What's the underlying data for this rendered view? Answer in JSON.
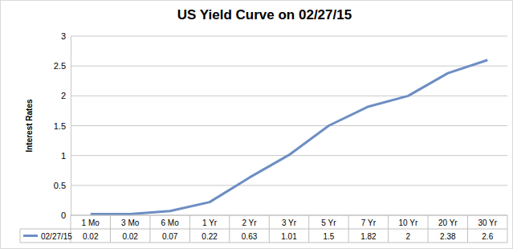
{
  "chart_data": {
    "type": "line",
    "title": "US Yield Curve on 02/27/15",
    "y_label": "Interest Rates",
    "categories": [
      "1 Mo",
      "3 Mo",
      "6 Mo",
      "1 Yr",
      "2 Yr",
      "3 Yr",
      "5 Yr",
      "7 Yr",
      "10 Yr",
      "20 Yr",
      "30 Yr"
    ],
    "series": [
      {
        "name": "02/27/15",
        "color": "#6d8ec4",
        "values": [
          0.02,
          0.02,
          0.07,
          0.22,
          0.63,
          1.01,
          1.5,
          1.82,
          2,
          2.38,
          2.6
        ]
      }
    ],
    "ylim": [
      0,
      3
    ],
    "yticks": [
      0,
      0.5,
      1,
      1.5,
      2,
      2.5,
      3
    ],
    "grid": true,
    "data_labels": true
  }
}
